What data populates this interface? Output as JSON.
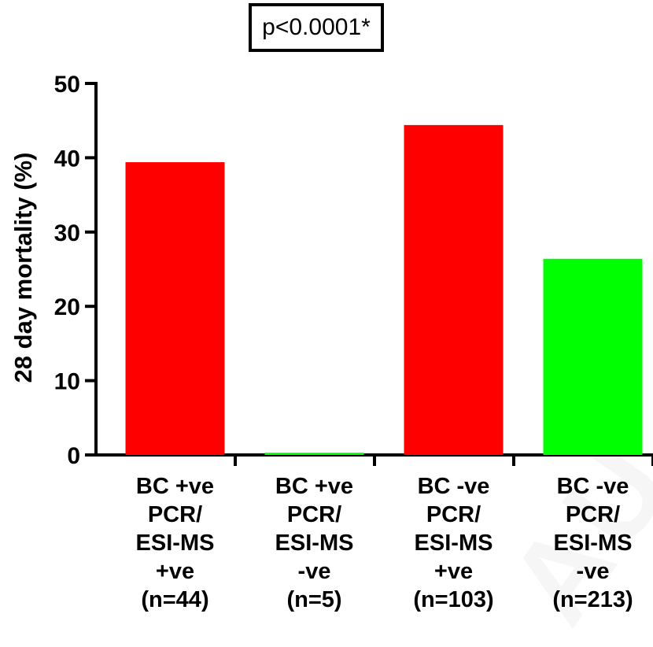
{
  "annotation": {
    "text": "p<0.0001*"
  },
  "chart_data": {
    "type": "bar",
    "ylabel": "28 day mortality (%)",
    "xlabel": "",
    "ylim": [
      0,
      50
    ],
    "yticks": [
      0,
      10,
      20,
      30,
      40,
      50
    ],
    "grid": false,
    "categories": [
      {
        "lines": [
          "BC +ve",
          "PCR/",
          "ESI-MS",
          "+ve",
          "(n=44)"
        ],
        "value": 39.4,
        "color": "#ff0000"
      },
      {
        "lines": [
          "BC +ve",
          "PCR/",
          "ESI-MS",
          "-ve",
          "(n=5)"
        ],
        "value": 0.3,
        "color": "#00ff00"
      },
      {
        "lines": [
          "BC -ve",
          "PCR/",
          "ESI-MS",
          "+ve",
          "(n=103)"
        ],
        "value": 44.4,
        "color": "#ff0000"
      },
      {
        "lines": [
          "BC -ve",
          "PCR/",
          "ESI-MS",
          "-ve",
          "(n=213)"
        ],
        "value": 26.4,
        "color": "#00ff00"
      }
    ]
  }
}
